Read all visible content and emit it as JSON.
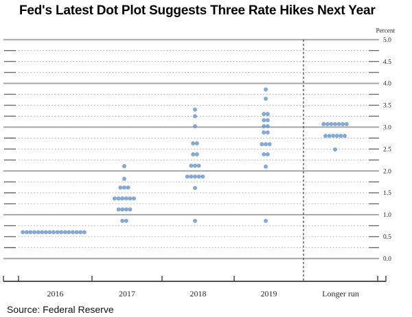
{
  "header": {
    "title": "Fed's Latest Dot Plot Suggests Three Rate Hikes Next Year"
  },
  "footer": {
    "source": "Source: Federal Reserve"
  },
  "chart_data": {
    "type": "scatter",
    "subtype": "fed-dot-plot",
    "title": "Fed's Latest Dot Plot Suggests Three Rate Hikes Next Year",
    "ylabel": "Percent",
    "xlabel": "",
    "ylim": [
      0.0,
      5.0
    ],
    "y_tick_step": 0.25,
    "y_label_step": 0.5,
    "y_tick_labels": [
      "5.0",
      "4.5",
      "4.0",
      "3.5",
      "3.0",
      "2.5",
      "2.0",
      "1.5",
      "1.0",
      "0.5",
      "0.0"
    ],
    "y_major_gridlines": [
      0.0,
      1.0,
      2.0,
      3.0,
      4.0,
      5.0
    ],
    "grid": "dotted-minor-solid-major",
    "legend": "none",
    "categories": [
      "2016",
      "2017",
      "2018",
      "2019",
      "Longer run"
    ],
    "divider_before_category": "Longer run",
    "series": [
      {
        "name": "2016",
        "dots": [
          {
            "rate": 0.6,
            "count": 17
          }
        ]
      },
      {
        "name": "2017",
        "dots": [
          {
            "rate": 2.11,
            "count": 1
          },
          {
            "rate": 1.82,
            "count": 1
          },
          {
            "rate": 1.62,
            "count": 3
          },
          {
            "rate": 1.37,
            "count": 6
          },
          {
            "rate": 1.12,
            "count": 4
          },
          {
            "rate": 0.86,
            "count": 2
          }
        ]
      },
      {
        "name": "2018",
        "dots": [
          {
            "rate": 3.4,
            "count": 1
          },
          {
            "rate": 3.25,
            "count": 1
          },
          {
            "rate": 3.02,
            "count": 1
          },
          {
            "rate": 2.63,
            "count": 2
          },
          {
            "rate": 2.38,
            "count": 2
          },
          {
            "rate": 2.12,
            "count": 3
          },
          {
            "rate": 1.87,
            "count": 5
          },
          {
            "rate": 1.61,
            "count": 1
          },
          {
            "rate": 0.86,
            "count": 1
          }
        ]
      },
      {
        "name": "2019",
        "dots": [
          {
            "rate": 3.86,
            "count": 1
          },
          {
            "rate": 3.65,
            "count": 1
          },
          {
            "rate": 3.3,
            "count": 2
          },
          {
            "rate": 3.16,
            "count": 2
          },
          {
            "rate": 3.02,
            "count": 2
          },
          {
            "rate": 2.88,
            "count": 2
          },
          {
            "rate": 2.61,
            "count": 3
          },
          {
            "rate": 2.38,
            "count": 2
          },
          {
            "rate": 2.1,
            "count": 1
          },
          {
            "rate": 0.86,
            "count": 1
          }
        ]
      },
      {
        "name": "Longer run",
        "dots": [
          {
            "rate": 3.07,
            "count": 7
          },
          {
            "rate": 2.8,
            "count": 6
          },
          {
            "rate": 2.49,
            "count": 1
          }
        ]
      }
    ],
    "colors": {
      "dot": "#6f9bcb",
      "major_grid": "#a6a6a6",
      "minor_grid": "#bcbcbc",
      "tick": "#6b6b6b",
      "axis": "#3a3a3a",
      "divider": "#333333",
      "label": "#2b2b2b"
    }
  }
}
